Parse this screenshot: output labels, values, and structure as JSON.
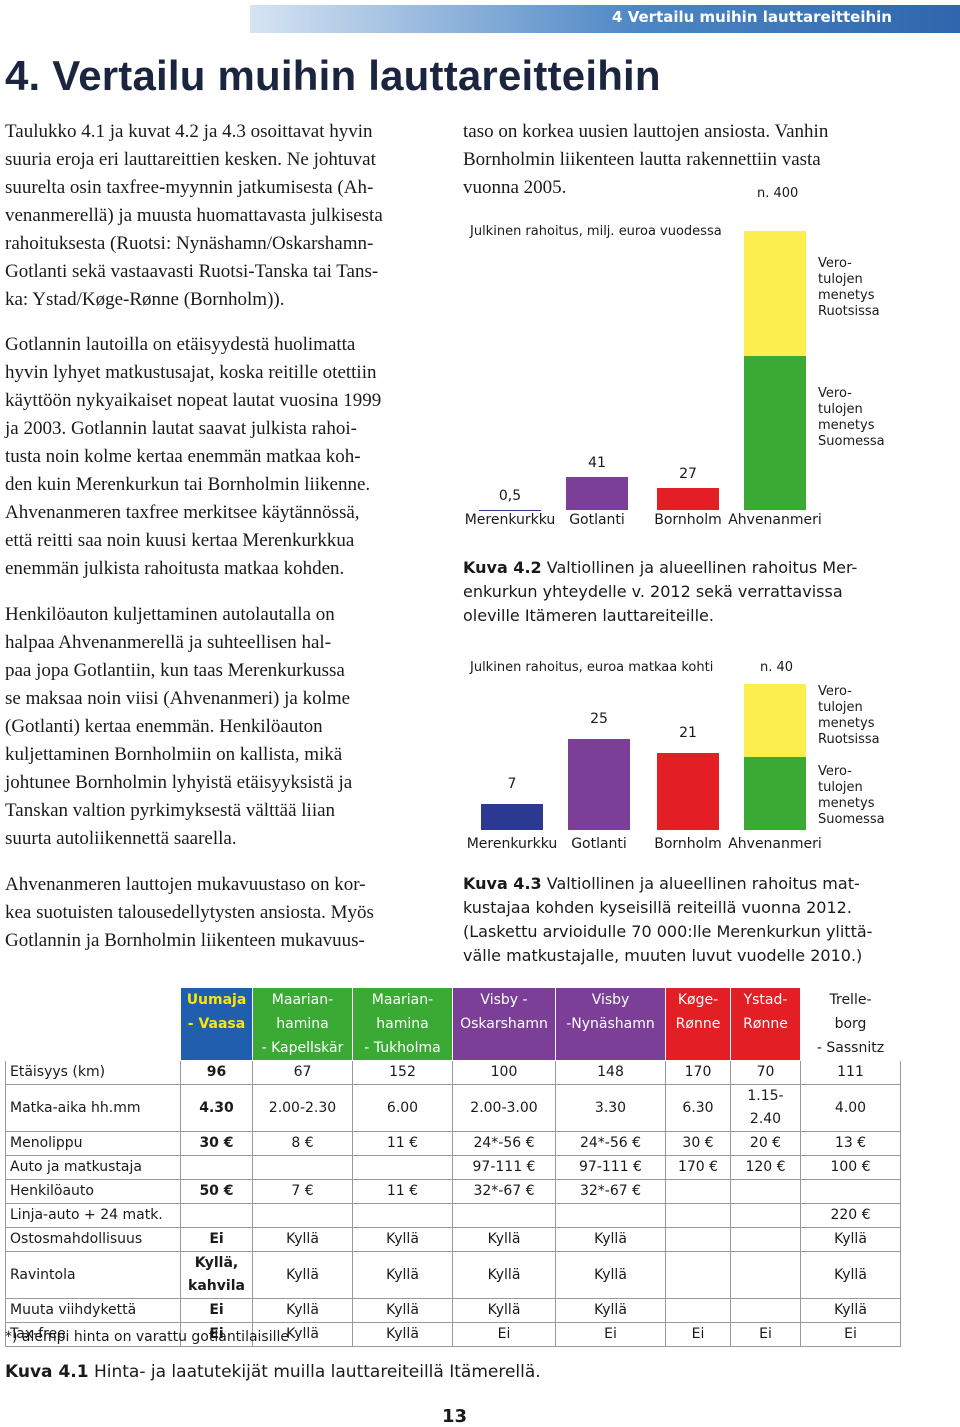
{
  "header": {
    "running_title": "4 Vertailu muihin lauttareitteihin",
    "title": "4. Vertailu muihin lauttareitteihin"
  },
  "body": {
    "left_paragraphs": [
      "Taulukko 4.1 ja kuvat 4.2 ja 4.3 osoittavat hyvin\nsuuria eroja eri lauttareittien kesken. Ne johtuvat\nsuurelta osin taxfree-myynnin jatkumisesta (Ah-\nvenanmerellä) ja muusta huomattavasta julkisesta\nrahoituksesta (Ruotsi: Nynäshamn/Oskarshamn-\nGotlanti sekä vastaavasti Ruotsi-Tanska tai Tans-\nka: Ystad/Køge-Rønne (Bornholm)).",
      "Gotlannin lautoilla on etäisyydestä huolimatta\nhyvin lyhyet matkustusajat, koska reitille otettiin\nkäyttöön nykyaikaiset nopeat lautat vuosina 1999\nja 2003. Gotlannin lautat saavat julkista rahoi-\ntusta noin kolme kertaa enemmän matkaa koh-\nden kuin Merenkurkun tai Bornholmin liikenne.\nAhvenanmeren taxfree merkitsee käytännössä,\nettä reitti saa noin kuusi kertaa Merenkurkkua\nenemmän julkista rahoitusta matkaa kohden.",
      "Henkilöauton kuljettaminen autolautalla on\nhalpaa Ahvenanmerellä ja suhteellisen hal-\npaa jopa Gotlantiin, kun taas Merenkurkussa\nse maksaa noin viisi (Ahvenanmeri) ja kolme\n(Gotlanti) kertaa enemmän. Henkilöauton\nkuljettaminen Bornholmiin on kallista, mikä\njohtunee Bornholmin lyhyistä etäisyyksistä ja\nTanskan valtion pyrkimyksestä välttää liian\nsuurta autoliikennettä saarella.",
      "Ahvenanmeren lauttojen mukavuustaso on kor-\nkea suotuisten talousedellytysten ansiosta. Myös\nGotlannin ja Bornholmin liikenteen mukavuus-"
    ],
    "right_paragraph": "taso on korkea uusien lauttojen ansiosta. Vanhin\nBornholmin liikenteen lautta rakennettiin vasta\nvuonna 2005."
  },
  "chart_data": [
    {
      "type": "bar",
      "title": "Julkinen rahoitus, milj. euroa vuodessa",
      "annotation": "n. 400",
      "categories": [
        "Merenkurkku",
        "Gotlanti",
        "Bornholm",
        "Ahvenanmeri"
      ],
      "values": [
        0.5,
        41,
        27,
        null
      ],
      "value_labels": [
        "0,5",
        "41",
        "27",
        null
      ],
      "colors": [
        "#2b3990",
        "#7b3f98",
        "#e31e24",
        null
      ],
      "series": [
        {
          "name": "Vero-\ntulojen\nmenetys\nSuomessa",
          "color": "#3aaa35",
          "values": [
            null,
            null,
            null,
            190
          ]
        },
        {
          "name": "Vero-\ntulojen\nmenetys\nRuotsissa",
          "color": "#fcee4f",
          "values": [
            null,
            null,
            null,
            155
          ]
        }
      ],
      "caption_label": "Kuva 4.2",
      "caption": " Valtiollinen ja alueellinen rahoitus Mer-\nenkurkun yhteydelle v. 2012 sekä verrattavissa\noleville Itämeren lauttareiteille."
    },
    {
      "type": "bar",
      "title": "Julkinen rahoitus, euroa matkaa kohti",
      "annotation": "n. 40",
      "categories": [
        "Merenkurkku",
        "Gotlanti",
        "Bornholm",
        "Ahvenanmeri"
      ],
      "values": [
        7,
        25,
        21,
        null
      ],
      "colors": [
        "#2b3990",
        "#7b3f98",
        "#e31e24",
        null
      ],
      "series": [
        {
          "name": "Vero-\ntulojen\nmenetys\nSuomessa",
          "color": "#3aaa35",
          "values": [
            null,
            null,
            null,
            20
          ]
        },
        {
          "name": "Vero-\ntulojen\nmenetys\nRuotsissa",
          "color": "#fcee4f",
          "values": [
            null,
            null,
            null,
            20
          ]
        }
      ],
      "caption_label": "Kuva 4.3",
      "caption": " Valtiollinen ja alueellinen rahoitus mat-\nkustajaa kohden kyseisillä reiteillä vuonna 2012.\n(Laskettu arvioidulle 70 000:lle Merenkurkun ylittä-\nvälle matkustajalle, muuten luvut vuodelle 2010.)"
    }
  ],
  "table": {
    "header": [
      "Uumaja\n- Vaasa",
      "Maarian-\nhamina\n- Kapellskär",
      "Maarian-\nhamina\n- Tukholma",
      "Visby -\nOskarshamn",
      "Visby\n-Nynäshamn",
      "Køge-\nRønne",
      "Ystad-\nRønne",
      "Trelle-\nborg\n- Sassnitz"
    ],
    "rows": [
      [
        "Etäisyys (km)",
        "96",
        "67",
        "152",
        "100",
        "148",
        "170",
        "70",
        "111"
      ],
      [
        "Matka-aika hh.mm",
        "4.30",
        "2.00-2.30",
        "6.00",
        "2.00-3.00",
        "3.30",
        "6.30",
        "1.15-2.40",
        "4.00"
      ],
      [
        "Menolippu",
        "30 €",
        "8 €",
        "11 €",
        "24*-56 €",
        "24*-56 €",
        "30 €",
        "20 €",
        "13 €"
      ],
      [
        "Auto ja matkustaja",
        null,
        null,
        null,
        "97-111 €",
        "97-111 €",
        "170 €",
        "120 €",
        "100 €"
      ],
      [
        "Henkilöauto",
        "50 €",
        "7 €",
        "11 €",
        "32*-67 €",
        "32*-67 €",
        null,
        null,
        null
      ],
      [
        "Linja-auto + 24 matk.",
        null,
        null,
        null,
        null,
        null,
        null,
        null,
        "220 €"
      ],
      [
        "Ostosmahdollisuus",
        "Ei",
        "Kyllä",
        "Kyllä",
        "Kyllä",
        "Kyllä",
        null,
        null,
        "Kyllä"
      ],
      [
        "Ravintola",
        "Kyllä,\nkahvila",
        "Kyllä",
        "Kyllä",
        "Kyllä",
        "Kyllä",
        null,
        null,
        "Kyllä"
      ],
      [
        "Muuta viihdykettä",
        "Ei",
        "Kyllä",
        "Kyllä",
        "Kyllä",
        "Kyllä",
        null,
        null,
        "Kyllä"
      ],
      [
        "Tax-free",
        "Ei",
        "Kyllä",
        "Kyllä",
        "Ei",
        "Ei",
        "Ei",
        "Ei",
        "Ei"
      ]
    ],
    "footnote": "*) alempi hinta on varattu gotlantilaisille",
    "caption_label": "Kuva 4.1",
    "caption": " Hinta- ja laatutekijät muilla lauttareiteillä Itämerellä."
  },
  "page_number": "13"
}
